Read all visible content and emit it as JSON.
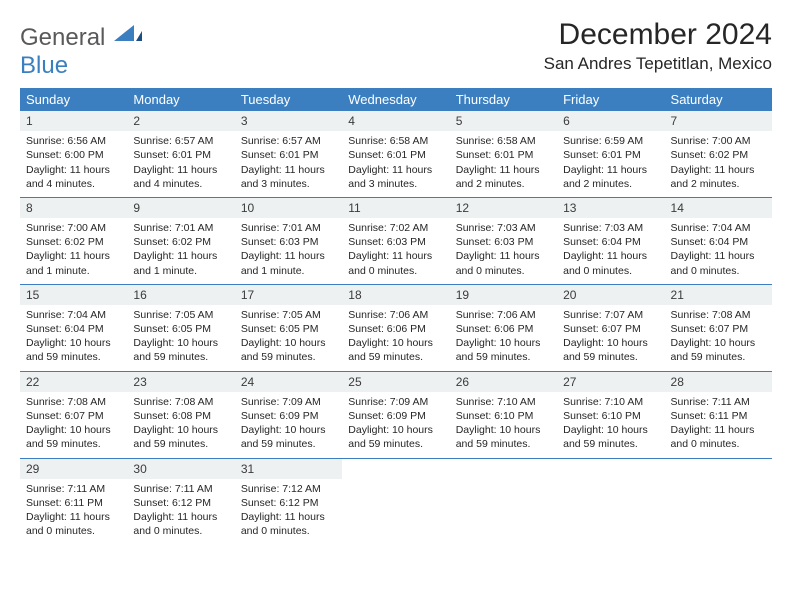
{
  "brand": {
    "general": "General",
    "blue": "Blue"
  },
  "title": "December 2024",
  "location": "San Andres Tepetitlan, Mexico",
  "colors": {
    "header_bg": "#3c7fc0",
    "header_text": "#ffffff",
    "daynum_bg": "#eef1f2",
    "divider": "#3c7fc0",
    "body_text": "#262626",
    "logo_gray": "#59595b",
    "logo_blue": "#3c7fc0"
  },
  "typography": {
    "title_fontsize": 30,
    "location_fontsize": 17,
    "header_fontsize": 13,
    "body_fontsize": 10.5
  },
  "dayNames": [
    "Sunday",
    "Monday",
    "Tuesday",
    "Wednesday",
    "Thursday",
    "Friday",
    "Saturday"
  ],
  "weeks": [
    [
      {
        "n": "1",
        "sr": "Sunrise: 6:56 AM",
        "ss": "Sunset: 6:00 PM",
        "dl": "Daylight: 11 hours and 4 minutes."
      },
      {
        "n": "2",
        "sr": "Sunrise: 6:57 AM",
        "ss": "Sunset: 6:01 PM",
        "dl": "Daylight: 11 hours and 4 minutes."
      },
      {
        "n": "3",
        "sr": "Sunrise: 6:57 AM",
        "ss": "Sunset: 6:01 PM",
        "dl": "Daylight: 11 hours and 3 minutes."
      },
      {
        "n": "4",
        "sr": "Sunrise: 6:58 AM",
        "ss": "Sunset: 6:01 PM",
        "dl": "Daylight: 11 hours and 3 minutes."
      },
      {
        "n": "5",
        "sr": "Sunrise: 6:58 AM",
        "ss": "Sunset: 6:01 PM",
        "dl": "Daylight: 11 hours and 2 minutes."
      },
      {
        "n": "6",
        "sr": "Sunrise: 6:59 AM",
        "ss": "Sunset: 6:01 PM",
        "dl": "Daylight: 11 hours and 2 minutes."
      },
      {
        "n": "7",
        "sr": "Sunrise: 7:00 AM",
        "ss": "Sunset: 6:02 PM",
        "dl": "Daylight: 11 hours and 2 minutes."
      }
    ],
    [
      {
        "n": "8",
        "sr": "Sunrise: 7:00 AM",
        "ss": "Sunset: 6:02 PM",
        "dl": "Daylight: 11 hours and 1 minute."
      },
      {
        "n": "9",
        "sr": "Sunrise: 7:01 AM",
        "ss": "Sunset: 6:02 PM",
        "dl": "Daylight: 11 hours and 1 minute."
      },
      {
        "n": "10",
        "sr": "Sunrise: 7:01 AM",
        "ss": "Sunset: 6:03 PM",
        "dl": "Daylight: 11 hours and 1 minute."
      },
      {
        "n": "11",
        "sr": "Sunrise: 7:02 AM",
        "ss": "Sunset: 6:03 PM",
        "dl": "Daylight: 11 hours and 0 minutes."
      },
      {
        "n": "12",
        "sr": "Sunrise: 7:03 AM",
        "ss": "Sunset: 6:03 PM",
        "dl": "Daylight: 11 hours and 0 minutes."
      },
      {
        "n": "13",
        "sr": "Sunrise: 7:03 AM",
        "ss": "Sunset: 6:04 PM",
        "dl": "Daylight: 11 hours and 0 minutes."
      },
      {
        "n": "14",
        "sr": "Sunrise: 7:04 AM",
        "ss": "Sunset: 6:04 PM",
        "dl": "Daylight: 11 hours and 0 minutes."
      }
    ],
    [
      {
        "n": "15",
        "sr": "Sunrise: 7:04 AM",
        "ss": "Sunset: 6:04 PM",
        "dl": "Daylight: 10 hours and 59 minutes."
      },
      {
        "n": "16",
        "sr": "Sunrise: 7:05 AM",
        "ss": "Sunset: 6:05 PM",
        "dl": "Daylight: 10 hours and 59 minutes."
      },
      {
        "n": "17",
        "sr": "Sunrise: 7:05 AM",
        "ss": "Sunset: 6:05 PM",
        "dl": "Daylight: 10 hours and 59 minutes."
      },
      {
        "n": "18",
        "sr": "Sunrise: 7:06 AM",
        "ss": "Sunset: 6:06 PM",
        "dl": "Daylight: 10 hours and 59 minutes."
      },
      {
        "n": "19",
        "sr": "Sunrise: 7:06 AM",
        "ss": "Sunset: 6:06 PM",
        "dl": "Daylight: 10 hours and 59 minutes."
      },
      {
        "n": "20",
        "sr": "Sunrise: 7:07 AM",
        "ss": "Sunset: 6:07 PM",
        "dl": "Daylight: 10 hours and 59 minutes."
      },
      {
        "n": "21",
        "sr": "Sunrise: 7:08 AM",
        "ss": "Sunset: 6:07 PM",
        "dl": "Daylight: 10 hours and 59 minutes."
      }
    ],
    [
      {
        "n": "22",
        "sr": "Sunrise: 7:08 AM",
        "ss": "Sunset: 6:07 PM",
        "dl": "Daylight: 10 hours and 59 minutes."
      },
      {
        "n": "23",
        "sr": "Sunrise: 7:08 AM",
        "ss": "Sunset: 6:08 PM",
        "dl": "Daylight: 10 hours and 59 minutes."
      },
      {
        "n": "24",
        "sr": "Sunrise: 7:09 AM",
        "ss": "Sunset: 6:09 PM",
        "dl": "Daylight: 10 hours and 59 minutes."
      },
      {
        "n": "25",
        "sr": "Sunrise: 7:09 AM",
        "ss": "Sunset: 6:09 PM",
        "dl": "Daylight: 10 hours and 59 minutes."
      },
      {
        "n": "26",
        "sr": "Sunrise: 7:10 AM",
        "ss": "Sunset: 6:10 PM",
        "dl": "Daylight: 10 hours and 59 minutes."
      },
      {
        "n": "27",
        "sr": "Sunrise: 7:10 AM",
        "ss": "Sunset: 6:10 PM",
        "dl": "Daylight: 10 hours and 59 minutes."
      },
      {
        "n": "28",
        "sr": "Sunrise: 7:11 AM",
        "ss": "Sunset: 6:11 PM",
        "dl": "Daylight: 11 hours and 0 minutes."
      }
    ],
    [
      {
        "n": "29",
        "sr": "Sunrise: 7:11 AM",
        "ss": "Sunset: 6:11 PM",
        "dl": "Daylight: 11 hours and 0 minutes."
      },
      {
        "n": "30",
        "sr": "Sunrise: 7:11 AM",
        "ss": "Sunset: 6:12 PM",
        "dl": "Daylight: 11 hours and 0 minutes."
      },
      {
        "n": "31",
        "sr": "Sunrise: 7:12 AM",
        "ss": "Sunset: 6:12 PM",
        "dl": "Daylight: 11 hours and 0 minutes."
      },
      null,
      null,
      null,
      null
    ]
  ]
}
